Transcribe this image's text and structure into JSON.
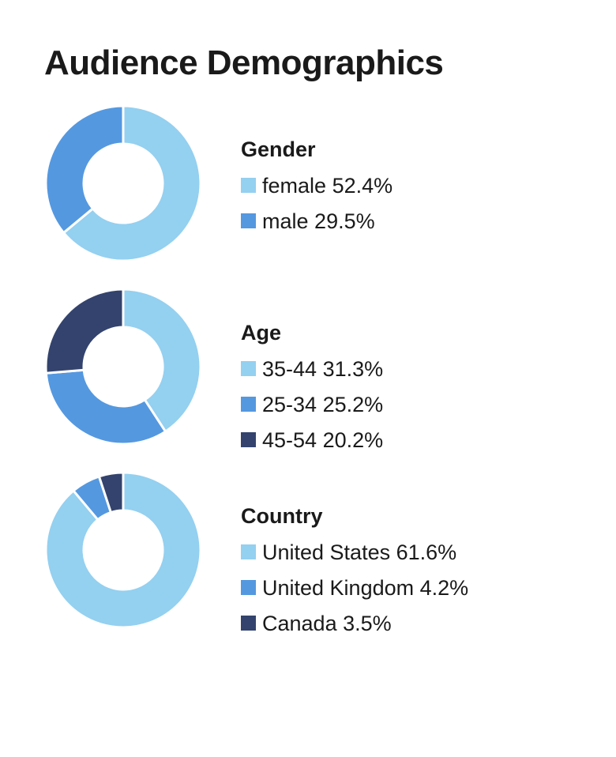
{
  "title": "Audience Demographics",
  "colors": [
    "#94d0f0",
    "#5498e0",
    "#33436d"
  ],
  "chart_data": [
    {
      "type": "pie",
      "title": "Gender",
      "categories": [
        "female",
        "male"
      ],
      "values": [
        52.4,
        29.5
      ],
      "labels": [
        "52.4%",
        "29.5%"
      ],
      "colors": [
        "#94d0f0",
        "#5498e0"
      ],
      "legend_placement": "right"
    },
    {
      "type": "pie",
      "title": "Age",
      "categories": [
        "35-44",
        "25-34",
        "45-54"
      ],
      "values": [
        31.3,
        25.2,
        20.2
      ],
      "labels": [
        "31.3%",
        "25.2%",
        "20.2%"
      ],
      "colors": [
        "#94d0f0",
        "#5498e0",
        "#33436d"
      ],
      "legend_placement": "right"
    },
    {
      "type": "pie",
      "title": "Country",
      "categories": [
        "United States",
        "United Kingdom",
        "Canada"
      ],
      "values": [
        61.6,
        4.2,
        3.5
      ],
      "labels": [
        "61.6%",
        "4.2%",
        "3.5%"
      ],
      "colors": [
        "#94d0f0",
        "#5498e0",
        "#33436d"
      ],
      "legend_placement": "right"
    }
  ]
}
